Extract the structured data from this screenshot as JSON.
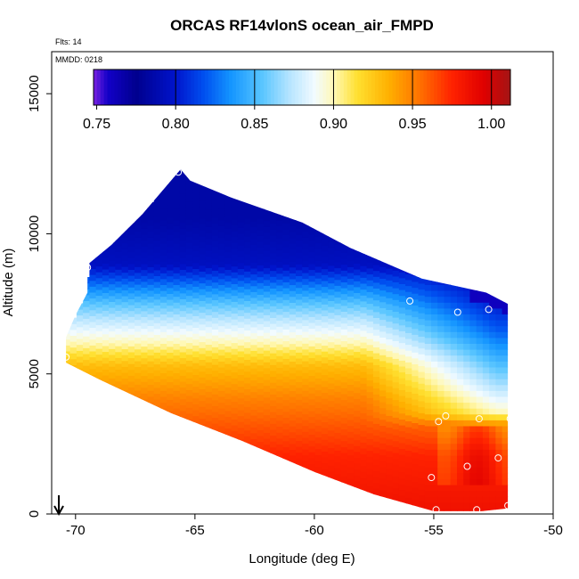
{
  "chart_data": {
    "type": "heatmap",
    "title": "ORCAS RF14vlonS ocean_air_FMPD",
    "annotations": {
      "flights": "Flts: 14",
      "date": "MMDD: 0218"
    },
    "xlabel": "Longitude (deg E)",
    "ylabel": "Altitude (m)",
    "xlim": [
      -71,
      -50
    ],
    "ylim": [
      0,
      16500
    ],
    "x_ticks": [
      -70,
      -65,
      -60,
      -55,
      -50
    ],
    "x_tick_labels": [
      "-70",
      "-65",
      "-60",
      "-55",
      "-50"
    ],
    "y_ticks": [
      0,
      5000,
      10000,
      15000
    ],
    "y_tick_labels": [
      "0",
      "5000",
      "10000",
      "15000"
    ],
    "colorbar": {
      "range": [
        0.748,
        1.012
      ],
      "ticks": [
        0.75,
        0.8,
        0.85,
        0.9,
        0.95,
        1.0
      ],
      "tick_labels": [
        "0.75",
        "0.80",
        "0.85",
        "0.90",
        "0.95",
        "1.00"
      ],
      "stops": [
        {
          "value": 0.748,
          "color": "#7a22e0"
        },
        {
          "value": 0.757,
          "color": "#1200c8"
        },
        {
          "value": 0.775,
          "color": "#00008e"
        },
        {
          "value": 0.8,
          "color": "#0014cc"
        },
        {
          "value": 0.818,
          "color": "#0050f0"
        },
        {
          "value": 0.835,
          "color": "#1495ff"
        },
        {
          "value": 0.855,
          "color": "#5ac6ff"
        },
        {
          "value": 0.872,
          "color": "#b5e4ff"
        },
        {
          "value": 0.888,
          "color": "#f2fbff"
        },
        {
          "value": 0.9,
          "color": "#fff8b6"
        },
        {
          "value": 0.915,
          "color": "#ffe030"
        },
        {
          "value": 0.935,
          "color": "#ffb000"
        },
        {
          "value": 0.955,
          "color": "#ff7000"
        },
        {
          "value": 0.975,
          "color": "#ff2200"
        },
        {
          "value": 0.995,
          "color": "#e00000"
        },
        {
          "value": 1.012,
          "color": "#a31515"
        }
      ]
    },
    "field": {
      "outline": [
        [
          -70.4,
          5400
        ],
        [
          -70.4,
          6300
        ],
        [
          -70.0,
          7100
        ],
        [
          -69.5,
          7900
        ],
        [
          -69.5,
          8900
        ],
        [
          -68.5,
          9600
        ],
        [
          -67.2,
          10700
        ],
        [
          -66.0,
          11900
        ],
        [
          -65.6,
          12300
        ],
        [
          -65.2,
          11900
        ],
        [
          -63.5,
          11300
        ],
        [
          -60.5,
          10400
        ],
        [
          -58.5,
          9500
        ],
        [
          -55.5,
          8400
        ],
        [
          -52.8,
          7900
        ],
        [
          -51.9,
          7500
        ],
        [
          -51.9,
          200
        ],
        [
          -53.0,
          100
        ],
        [
          -55.0,
          100
        ],
        [
          -57.5,
          700
        ],
        [
          -60.0,
          1500
        ],
        [
          -63.0,
          2600
        ],
        [
          -66.0,
          3600
        ],
        [
          -69.0,
          4800
        ]
      ],
      "min_alt_by_lon": [
        [
          -70.4,
          5400
        ],
        [
          -69.0,
          4800
        ],
        [
          -66.0,
          3600
        ],
        [
          -63.0,
          2600
        ],
        [
          -60.0,
          1500
        ],
        [
          -57.5,
          700
        ],
        [
          -55.0,
          100
        ],
        [
          -52.0,
          100
        ]
      ],
      "max_alt_by_lon": [
        [
          -70.4,
          6300
        ],
        [
          -70.0,
          7100
        ],
        [
          -69.5,
          8900
        ],
        [
          -68.5,
          9600
        ],
        [
          -67.2,
          10700
        ],
        [
          -66.0,
          11900
        ],
        [
          -65.6,
          12300
        ],
        [
          -65.2,
          11900
        ],
        [
          -63.5,
          11300
        ],
        [
          -60.5,
          10400
        ],
        [
          -58.5,
          9500
        ],
        [
          -55.5,
          8400
        ],
        [
          -52.8,
          7900
        ],
        [
          -51.9,
          7500
        ]
      ],
      "west_profile": [
        [
          0,
          0.985
        ],
        [
          2000,
          0.975
        ],
        [
          4000,
          0.95
        ],
        [
          5200,
          0.93
        ],
        [
          6000,
          0.9
        ],
        [
          6800,
          0.875
        ],
        [
          7400,
          0.855
        ],
        [
          8000,
          0.83
        ],
        [
          8800,
          0.795
        ],
        [
          10500,
          0.785
        ],
        [
          12500,
          0.785
        ]
      ],
      "east_profile": [
        [
          0,
          0.985
        ],
        [
          2000,
          0.975
        ],
        [
          3000,
          0.955
        ],
        [
          3500,
          0.9
        ],
        [
          4500,
          0.87
        ],
        [
          5500,
          0.845
        ],
        [
          6500,
          0.82
        ],
        [
          7500,
          0.8
        ],
        [
          8500,
          0.79
        ]
      ]
    },
    "observations": [
      {
        "lon": -65.7,
        "alt": 12200
      },
      {
        "lon": -69.5,
        "alt": 8800
      },
      {
        "lon": -56.0,
        "alt": 7600
      },
      {
        "lon": -54.0,
        "alt": 7200
      },
      {
        "lon": -52.7,
        "alt": 7300
      },
      {
        "lon": -51.5,
        "alt": 7400
      },
      {
        "lon": -70.4,
        "alt": 5600
      },
      {
        "lon": -54.8,
        "alt": 3300
      },
      {
        "lon": -54.5,
        "alt": 3500
      },
      {
        "lon": -53.1,
        "alt": 3400
      },
      {
        "lon": -51.8,
        "alt": 3400
      },
      {
        "lon": -52.3,
        "alt": 2000
      },
      {
        "lon": -53.6,
        "alt": 1700
      },
      {
        "lon": -55.1,
        "alt": 1300
      },
      {
        "lon": -51.9,
        "alt": 300
      },
      {
        "lon": -54.9,
        "alt": 150
      },
      {
        "lon": -53.2,
        "alt": 150
      }
    ],
    "marker_color": "#ffffff",
    "arrow": {
      "lon": -70.7,
      "pointing": "down"
    }
  }
}
